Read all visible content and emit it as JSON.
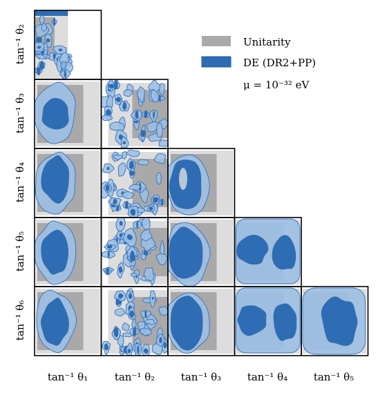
{
  "chart_data": {
    "type": "triangle-contour",
    "params": [
      "tan⁻¹ θ₂",
      "tan⁻¹ θ₃",
      "tan⁻¹ θ₄",
      "tan⁻¹ θ₅",
      "tan⁻¹ θ₆"
    ],
    "x_params": [
      "tan⁻¹ θ₁",
      "tan⁻¹ θ₂",
      "tan⁻¹ θ₃",
      "tan⁻¹ θ₄",
      "tan⁻¹ θ₅"
    ],
    "legend": [
      {
        "label": "Unitarity",
        "color": "#aaaaaa"
      },
      {
        "label": "DE (DR2+PP)",
        "color": "#2e6db4"
      }
    ],
    "annotation": "μ = 10⁻³² eV",
    "legend_position": "top-right",
    "colors": {
      "unitarity_outer": "#dddddd",
      "unitarity_inner": "#a9a9a9",
      "de_outer": "#9dbfe3",
      "de_inner": "#2e6db4",
      "de_edge": "#3d77bd"
    }
  }
}
